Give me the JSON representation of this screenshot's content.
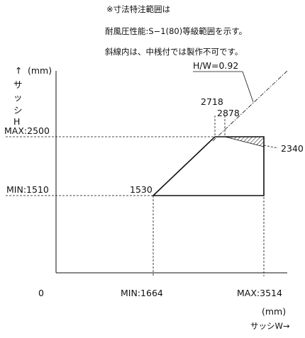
{
  "notes": {
    "line1": "※寸法特注範囲は",
    "line2": "耐風圧性能:S−1(80)等級範囲を示す。",
    "line3": "斜線内は、中桟付では製作不可です。"
  },
  "y_axis": {
    "arrow": "↑",
    "unit": "(mm)",
    "label_chars": [
      "サ",
      "ッ",
      "シ",
      "H"
    ],
    "max_label": "MAX:2500",
    "min_label": "MIN:1510"
  },
  "x_axis": {
    "origin": "0",
    "min_label": "MIN:1664",
    "max_label": "MAX:3514",
    "unit": "(mm)",
    "label": "サッシW→"
  },
  "ratio_label": "H/W=0.92",
  "points": {
    "p2718": "2718",
    "p2878": "2878",
    "p1530": "1530",
    "p2340": "2340"
  },
  "colors": {
    "line": "#111111",
    "background": "#ffffff"
  }
}
